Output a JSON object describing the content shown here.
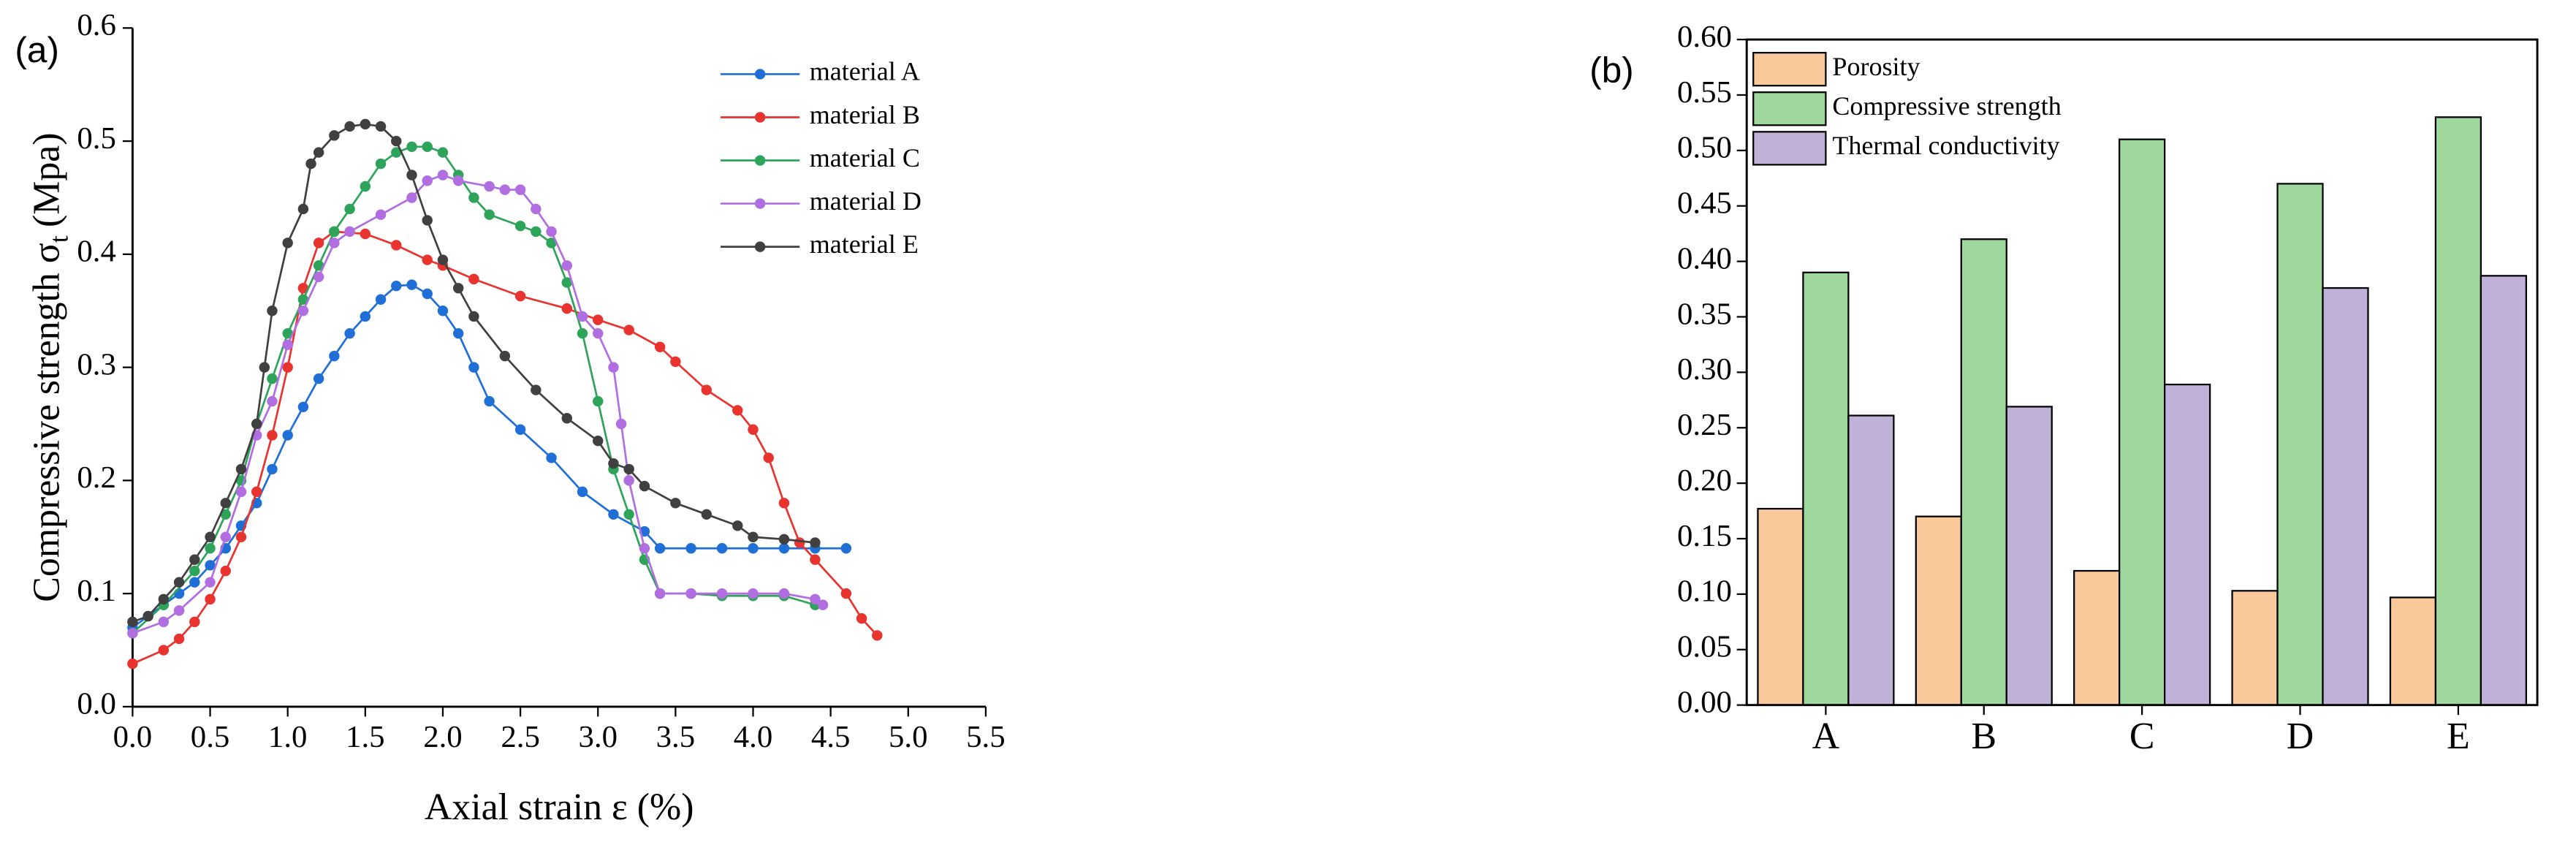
{
  "chart_data": [
    {
      "type": "line",
      "panel_label": "(a)",
      "x_label": "Axial strain ε (%)",
      "y_label": "Compressive strength σ",
      "y_label_subscript": "t",
      "y_label_unit": "(Mpa)",
      "xlim": [
        0,
        5.5
      ],
      "xticks": [
        {
          "value": 0,
          "label": "0.0"
        },
        {
          "value": 0.5,
          "label": "0.5"
        },
        {
          "value": 1,
          "label": "1.0"
        },
        {
          "value": 1.5,
          "label": "1.5"
        },
        {
          "value": 2,
          "label": "2.0"
        },
        {
          "value": 2.5,
          "label": "2.5"
        },
        {
          "value": 3,
          "label": "3.0"
        },
        {
          "value": 3.5,
          "label": "3.5"
        },
        {
          "value": 4,
          "label": "4.0"
        },
        {
          "value": 4.5,
          "label": "4.5"
        },
        {
          "value": 5,
          "label": "5.0"
        },
        {
          "value": 5.5,
          "label": "5.5"
        }
      ],
      "ylim": [
        0,
        0.6
      ],
      "yticks": [
        {
          "value": 0,
          "label": "0.0"
        },
        0.1,
        0.2,
        0.3,
        0.4,
        0.5,
        0.6
      ],
      "legend": "upper right",
      "series": [
        {
          "name": "material A",
          "color": "#1f6fd6",
          "x": [
            0,
            0.1,
            0.2,
            0.3,
            0.4,
            0.5,
            0.6,
            0.7,
            0.8,
            0.9,
            1.0,
            1.1,
            1.2,
            1.3,
            1.4,
            1.5,
            1.6,
            1.7,
            1.8,
            1.9,
            2.0,
            2.1,
            2.2,
            2.3,
            2.5,
            2.7,
            2.9,
            3.1,
            3.3,
            3.4,
            3.6,
            3.8,
            4.0,
            4.2,
            4.4,
            4.6
          ],
          "values": [
            0.07,
            0.08,
            0.09,
            0.1,
            0.11,
            0.125,
            0.14,
            0.16,
            0.18,
            0.21,
            0.24,
            0.265,
            0.29,
            0.31,
            0.33,
            0.345,
            0.36,
            0.372,
            0.373,
            0.365,
            0.35,
            0.33,
            0.3,
            0.27,
            0.245,
            0.22,
            0.19,
            0.17,
            0.155,
            0.14,
            0.14,
            0.14,
            0.14,
            0.14,
            0.14,
            0.14
          ]
        },
        {
          "name": "material B",
          "color": "#e8332e",
          "x": [
            0,
            0.2,
            0.3,
            0.4,
            0.5,
            0.6,
            0.7,
            0.8,
            0.9,
            1.0,
            1.1,
            1.2,
            1.3,
            1.5,
            1.7,
            1.9,
            2.0,
            2.2,
            2.5,
            2.8,
            3.0,
            3.2,
            3.4,
            3.5,
            3.7,
            3.9,
            4.0,
            4.1,
            4.2,
            4.3,
            4.4,
            4.6,
            4.7,
            4.8
          ],
          "values": [
            0.038,
            0.05,
            0.06,
            0.075,
            0.095,
            0.12,
            0.15,
            0.19,
            0.24,
            0.3,
            0.37,
            0.41,
            0.42,
            0.418,
            0.408,
            0.395,
            0.39,
            0.378,
            0.363,
            0.352,
            0.342,
            0.333,
            0.318,
            0.305,
            0.28,
            0.262,
            0.245,
            0.22,
            0.18,
            0.145,
            0.13,
            0.1,
            0.078,
            0.063
          ]
        },
        {
          "name": "material C",
          "color": "#2ea35a",
          "x": [
            0,
            0.2,
            0.4,
            0.5,
            0.6,
            0.7,
            0.8,
            0.9,
            1.0,
            1.1,
            1.2,
            1.3,
            1.4,
            1.5,
            1.6,
            1.7,
            1.8,
            1.9,
            2.0,
            2.1,
            2.2,
            2.3,
            2.5,
            2.6,
            2.7,
            2.8,
            2.9,
            3.0,
            3.1,
            3.2,
            3.3,
            3.4,
            3.6,
            3.8,
            4.0,
            4.2,
            4.4
          ],
          "values": [
            0.065,
            0.09,
            0.12,
            0.14,
            0.17,
            0.2,
            0.25,
            0.29,
            0.33,
            0.36,
            0.39,
            0.42,
            0.44,
            0.46,
            0.48,
            0.49,
            0.495,
            0.495,
            0.49,
            0.47,
            0.45,
            0.435,
            0.425,
            0.42,
            0.41,
            0.375,
            0.33,
            0.27,
            0.21,
            0.17,
            0.13,
            0.1,
            0.1,
            0.098,
            0.098,
            0.098,
            0.09
          ]
        },
        {
          "name": "material D",
          "color": "#b06ee0",
          "x": [
            0,
            0.2,
            0.3,
            0.5,
            0.6,
            0.7,
            0.8,
            0.9,
            1.0,
            1.1,
            1.2,
            1.3,
            1.4,
            1.6,
            1.8,
            1.9,
            2.0,
            2.1,
            2.3,
            2.4,
            2.5,
            2.6,
            2.7,
            2.8,
            2.9,
            3.0,
            3.1,
            3.15,
            3.2,
            3.3,
            3.4,
            3.6,
            3.8,
            4.0,
            4.2,
            4.4,
            4.45
          ],
          "values": [
            0.065,
            0.075,
            0.085,
            0.11,
            0.15,
            0.19,
            0.24,
            0.27,
            0.32,
            0.35,
            0.38,
            0.41,
            0.42,
            0.435,
            0.45,
            0.465,
            0.47,
            0.465,
            0.46,
            0.457,
            0.457,
            0.44,
            0.42,
            0.39,
            0.345,
            0.33,
            0.3,
            0.25,
            0.2,
            0.14,
            0.1,
            0.1,
            0.1,
            0.1,
            0.1,
            0.095,
            0.09
          ]
        },
        {
          "name": "material E",
          "color": "#404040",
          "x": [
            0,
            0.1,
            0.2,
            0.3,
            0.4,
            0.5,
            0.6,
            0.7,
            0.8,
            0.85,
            0.9,
            1.0,
            1.1,
            1.15,
            1.2,
            1.3,
            1.4,
            1.5,
            1.6,
            1.7,
            1.8,
            1.9,
            2.0,
            2.1,
            2.2,
            2.4,
            2.6,
            2.8,
            3.0,
            3.1,
            3.2,
            3.3,
            3.5,
            3.7,
            3.9,
            4.0,
            4.2,
            4.4
          ],
          "values": [
            0.075,
            0.08,
            0.095,
            0.11,
            0.13,
            0.15,
            0.18,
            0.21,
            0.25,
            0.3,
            0.35,
            0.41,
            0.44,
            0.48,
            0.49,
            0.505,
            0.513,
            0.515,
            0.513,
            0.5,
            0.47,
            0.43,
            0.395,
            0.37,
            0.345,
            0.31,
            0.28,
            0.255,
            0.235,
            0.215,
            0.21,
            0.195,
            0.18,
            0.17,
            0.16,
            0.15,
            0.148,
            0.145
          ]
        }
      ]
    },
    {
      "type": "bar",
      "panel_label": "(b)",
      "categories": [
        "A",
        "B",
        "C",
        "D",
        "E"
      ],
      "ylim": [
        0,
        0.6
      ],
      "yticks": [
        {
          "value": 0,
          "label": "0.00"
        },
        {
          "value": 0.05,
          "label": "0.05"
        },
        {
          "value": 0.1,
          "label": "0.10"
        },
        {
          "value": 0.15,
          "label": "0.15"
        },
        {
          "value": 0.2,
          "label": "0.20"
        },
        {
          "value": 0.25,
          "label": "0.25"
        },
        {
          "value": 0.3,
          "label": "0.30"
        },
        {
          "value": 0.35,
          "label": "0.35"
        },
        {
          "value": 0.4,
          "label": "0.40"
        },
        {
          "value": 0.45,
          "label": "0.45"
        },
        {
          "value": 0.5,
          "label": "0.50"
        },
        {
          "value": 0.55,
          "label": "0.55"
        },
        {
          "value": 0.6,
          "label": "0.60"
        }
      ],
      "legend": "upper left",
      "series": [
        {
          "name": "Porosity",
          "color": "#f9c89b",
          "values": [
            0.177,
            0.17,
            0.121,
            0.103,
            0.097
          ]
        },
        {
          "name": "Compressive strength",
          "color": "#9fd89c",
          "values": [
            0.39,
            0.42,
            0.51,
            0.47,
            0.53
          ]
        },
        {
          "name": "Thermal conductivity",
          "color": "#c0b1d9",
          "values": [
            0.261,
            0.269,
            0.289,
            0.376,
            0.387
          ]
        }
      ]
    }
  ]
}
